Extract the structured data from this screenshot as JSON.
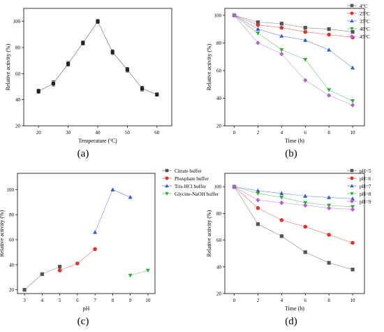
{
  "chart_data": [
    {
      "id": "a",
      "panel_label": "(a)",
      "type": "line",
      "xlabel": "Temperature (ºC)",
      "ylabel": "Relative activity (%)",
      "xlim": [
        15,
        65
      ],
      "ylim": [
        20,
        110
      ],
      "xticks": [
        20,
        30,
        40,
        50,
        60
      ],
      "yticks": [
        20,
        40,
        60,
        80,
        100
      ],
      "x_tick_labels": [
        "20",
        "30",
        "40",
        "50",
        "60"
      ],
      "y_tick_labels": [
        "20",
        "40",
        "60",
        "80",
        "100"
      ],
      "grid": false,
      "legend": null,
      "series": [
        {
          "color": "#222222",
          "marker": "square",
          "x": [
            20,
            25,
            30,
            35,
            40,
            45,
            50,
            55,
            60
          ],
          "y": [
            46.5,
            52.5,
            67.5,
            83.5,
            100,
            76.5,
            63,
            48.5,
            44
          ],
          "err": [
            1.5,
            2,
            1.8,
            1.5,
            1.5,
            1.8,
            1.8,
            1.8,
            1.3
          ]
        }
      ]
    },
    {
      "id": "b",
      "panel_label": "(b)",
      "type": "line",
      "xlabel": "Time (h)",
      "ylabel": "Relative activity (%)",
      "xlim": [
        -0.8,
        11
      ],
      "ylim": [
        20,
        105
      ],
      "xticks": [
        0,
        2,
        4,
        6,
        8,
        10
      ],
      "yticks": [
        20,
        40,
        60,
        80,
        100
      ],
      "x_tick_labels": [
        "0",
        "2",
        "4",
        "6",
        "8",
        "10"
      ],
      "y_tick_labels": [
        "20",
        "40",
        "60",
        "80",
        "100"
      ],
      "grid": false,
      "legend": "top-right",
      "series": [
        {
          "name": "4°C",
          "color": "#555555",
          "marker": "square",
          "x": [
            0,
            2,
            4,
            6,
            8,
            10
          ],
          "y": [
            100,
            95,
            94,
            91,
            90,
            88
          ]
        },
        {
          "name": "25°C",
          "color": "#e8302a",
          "marker": "circle",
          "x": [
            0,
            2,
            4,
            6,
            8,
            10
          ],
          "y": [
            100,
            93,
            91,
            88,
            86,
            84
          ]
        },
        {
          "name": "35°C",
          "color": "#2a5fd8",
          "marker": "triangle-up",
          "x": [
            0,
            2,
            4,
            6,
            8,
            10
          ],
          "y": [
            100,
            90,
            85,
            82,
            75,
            62
          ]
        },
        {
          "name": "40°C",
          "color": "#2fae3a",
          "marker": "triangle-down",
          "x": [
            0,
            2,
            4,
            6,
            8,
            10
          ],
          "y": [
            100,
            87,
            75,
            68,
            46,
            38
          ]
        },
        {
          "name": "45°C",
          "color": "#b25fd6",
          "marker": "diamond",
          "x": [
            0,
            2,
            4,
            6,
            8,
            10
          ],
          "y": [
            100,
            80,
            72,
            53,
            42,
            35
          ]
        }
      ]
    },
    {
      "id": "c",
      "panel_label": "(c)",
      "type": "line",
      "xlabel": "pH",
      "ylabel": "Relative activity (%)",
      "xlim": [
        2.6,
        10.4
      ],
      "ylim": [
        17,
        113
      ],
      "xticks": [
        3,
        4,
        5,
        6,
        7,
        8,
        9,
        10
      ],
      "yticks": [
        20,
        40,
        60,
        80,
        100
      ],
      "x_tick_labels": [
        "3",
        "4",
        "5",
        "6",
        "7",
        "8",
        "9",
        "10"
      ],
      "y_tick_labels": [
        "20",
        "40",
        "60",
        "80",
        "100"
      ],
      "grid": false,
      "legend": "top-right",
      "series": [
        {
          "name": "Citrate buffer",
          "color": "#555555",
          "marker": "square",
          "x": [
            3,
            4,
            5
          ],
          "y": [
            20,
            32.5,
            38.5
          ]
        },
        {
          "name": "Phosphate buffer",
          "color": "#e8302a",
          "marker": "circle",
          "x": [
            5,
            6,
            7
          ],
          "y": [
            35.5,
            41,
            52.5
          ]
        },
        {
          "name": "Tris-HCl buffer",
          "color": "#2a5fd8",
          "marker": "triangle-up",
          "x": [
            7,
            8,
            9
          ],
          "y": [
            66,
            100,
            94
          ]
        },
        {
          "name": "Glycine-NaOH buffer",
          "color": "#2fae3a",
          "marker": "triangle-down",
          "x": [
            9,
            10
          ],
          "y": [
            31.5,
            35.5
          ]
        }
      ]
    },
    {
      "id": "d",
      "panel_label": "(d)",
      "type": "line",
      "xlabel": "Time (h)",
      "ylabel": "Relative activity (%)",
      "xlim": [
        -0.8,
        11
      ],
      "ylim": [
        20,
        110
      ],
      "xticks": [
        0,
        2,
        4,
        6,
        8,
        10
      ],
      "yticks": [
        20,
        40,
        60,
        80,
        100
      ],
      "x_tick_labels": [
        "0",
        "2",
        "4",
        "6",
        "8",
        "10"
      ],
      "y_tick_labels": [
        "20",
        "40",
        "60",
        "80",
        "100"
      ],
      "grid": false,
      "legend": "top-right",
      "series": [
        {
          "name": "pH=5",
          "color": "#555555",
          "marker": "square",
          "x": [
            0,
            2,
            4,
            6,
            8,
            10
          ],
          "y": [
            100,
            72,
            63,
            51,
            43,
            38
          ]
        },
        {
          "name": "pH=6",
          "color": "#e8302a",
          "marker": "circle",
          "x": [
            0,
            2,
            4,
            6,
            8,
            10
          ],
          "y": [
            100,
            84,
            75,
            70,
            64,
            58
          ]
        },
        {
          "name": "pH=7",
          "color": "#2a5fd8",
          "marker": "triangle-up",
          "x": [
            0,
            2,
            4,
            6,
            8,
            10
          ],
          "y": [
            100,
            97,
            95,
            93,
            92,
            91
          ]
        },
        {
          "name": "pH=8",
          "color": "#2fae3a",
          "marker": "triangle-down",
          "x": [
            0,
            2,
            4,
            6,
            8,
            10
          ],
          "y": [
            100,
            95,
            92,
            88,
            86,
            85
          ]
        },
        {
          "name": "pH=9",
          "color": "#b25fd6",
          "marker": "diamond",
          "x": [
            0,
            2,
            4,
            6,
            8,
            10
          ],
          "y": [
            100,
            90,
            88,
            86,
            84,
            83
          ]
        }
      ]
    }
  ]
}
